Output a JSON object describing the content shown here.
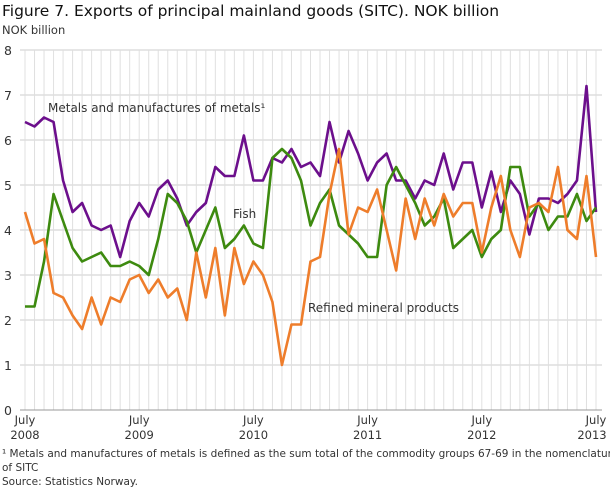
{
  "title": "Figure 7. Exports of principal mainland goods (SITC). NOK billion",
  "unit": "NOK billion",
  "footnote_line1": "¹ Metals and manufactures of metals is defined as the sum total of the commodity groups 67-69 in the nomenclature",
  "footnote_line2": "of SITC",
  "source": "Source: Statistics Norway.",
  "chart_data": {
    "type": "line",
    "title": "Figure 7. Exports of principal mainland goods (SITC). NOK billion",
    "ylabel": "NOK billion",
    "ylim": [
      0,
      8
    ],
    "yticks": [
      "0",
      "1",
      "2",
      "3",
      "4",
      "5",
      "6",
      "7",
      "8"
    ],
    "x_start": "2008-07",
    "x_end": "2013-07",
    "frequency": "monthly",
    "xticks": [
      {
        "month": "July",
        "year": "2008"
      },
      {
        "month": "July",
        "year": "2009"
      },
      {
        "month": "July",
        "year": "2010"
      },
      {
        "month": "July",
        "year": "2011"
      },
      {
        "month": "July",
        "year": "2012"
      },
      {
        "month": "July",
        "year": "2013"
      }
    ],
    "grid": true,
    "series": [
      {
        "name": "Metals and manufactures of metals¹",
        "color": "#6c0f8c",
        "values": [
          6.4,
          6.3,
          6.5,
          6.4,
          5.1,
          4.4,
          4.6,
          4.1,
          4.0,
          4.1,
          3.4,
          4.2,
          4.6,
          4.3,
          4.9,
          5.1,
          4.7,
          4.1,
          4.4,
          4.6,
          5.4,
          5.2,
          5.2,
          6.1,
          5.1,
          5.1,
          5.6,
          5.5,
          5.8,
          5.4,
          5.5,
          5.2,
          6.4,
          5.5,
          6.2,
          5.7,
          5.1,
          5.5,
          5.7,
          5.1,
          5.1,
          4.7,
          5.1,
          5.0,
          5.7,
          4.9,
          5.5,
          5.5,
          4.5,
          5.3,
          4.4,
          5.1,
          4.8,
          3.9,
          4.7,
          4.7,
          4.6,
          4.8,
          5.1,
          7.2,
          4.4
        ]
      },
      {
        "name": "Fish",
        "color": "#3d8a0f",
        "values": [
          2.3,
          2.3,
          3.3,
          4.8,
          4.2,
          3.6,
          3.3,
          3.4,
          3.5,
          3.2,
          3.2,
          3.3,
          3.2,
          3.0,
          3.8,
          4.8,
          4.6,
          4.2,
          3.5,
          4.0,
          4.5,
          3.6,
          3.8,
          4.1,
          3.7,
          3.6,
          5.6,
          5.8,
          5.6,
          5.1,
          4.1,
          4.6,
          4.9,
          4.1,
          3.9,
          3.7,
          3.4,
          3.4,
          5.0,
          5.4,
          5.0,
          4.6,
          4.1,
          4.3,
          4.7,
          3.6,
          3.8,
          4.0,
          3.4,
          3.8,
          4.0,
          5.4,
          5.4,
          4.3,
          4.6,
          4.0,
          4.3,
          4.3,
          4.8,
          4.2,
          4.5
        ]
      },
      {
        "name": "Refined mineral products",
        "color": "#ee7d2b",
        "values": [
          4.4,
          3.7,
          3.8,
          2.6,
          2.5,
          2.1,
          1.8,
          2.5,
          1.9,
          2.5,
          2.4,
          2.9,
          3.0,
          2.6,
          2.9,
          2.5,
          2.7,
          2.0,
          3.5,
          2.5,
          3.6,
          2.1,
          3.6,
          2.8,
          3.3,
          3.0,
          2.4,
          1.0,
          1.9,
          1.9,
          3.3,
          3.4,
          4.8,
          5.8,
          3.9,
          4.5,
          4.4,
          4.9,
          4.0,
          3.1,
          4.7,
          3.8,
          4.7,
          4.1,
          4.8,
          4.3,
          4.6,
          4.6,
          3.5,
          4.5,
          5.2,
          4.0,
          3.4,
          4.5,
          4.6,
          4.4,
          5.4,
          4.0,
          3.8,
          5.2,
          3.4
        ]
      }
    ]
  }
}
